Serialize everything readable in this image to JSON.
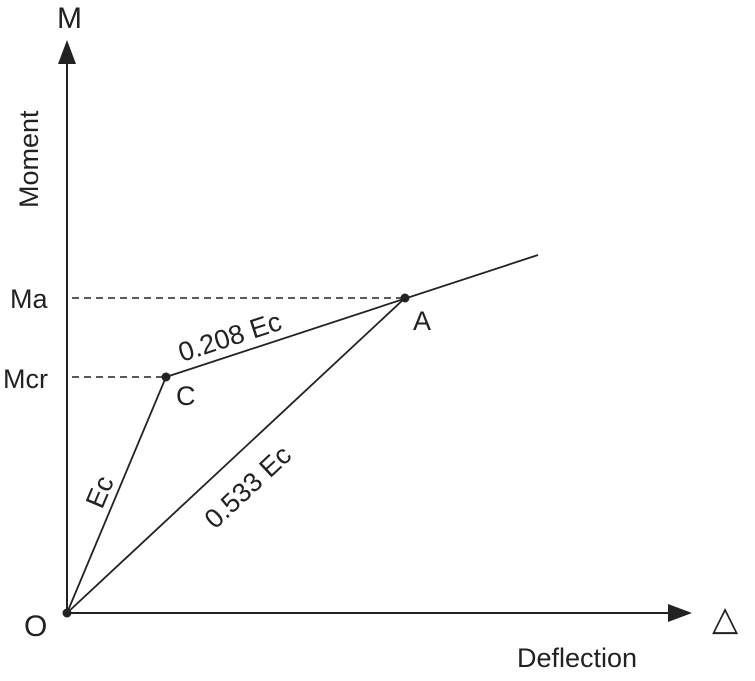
{
  "axes": {
    "y_symbol": "M",
    "y_label": "Moment",
    "x_symbol": "△",
    "x_label": "Deflection",
    "origin_label": "O"
  },
  "levels": {
    "upper": "Ma",
    "lower": "Mcr"
  },
  "points": {
    "cracking": "C",
    "service": "A"
  },
  "segments": {
    "initial": "Ec",
    "cracked": "0.208 Ec",
    "secant": "0.533 Ec"
  },
  "colors": {
    "ink": "#222222",
    "background": "#ffffff"
  }
}
